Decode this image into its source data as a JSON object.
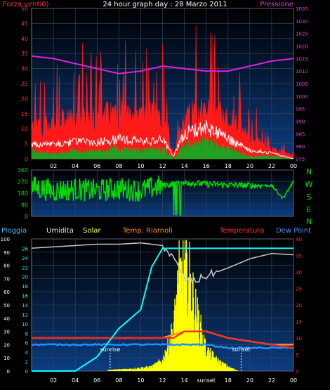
{
  "header": {
    "title": "24 hour graph day : 28 Marzo 2011",
    "left_label": "Forza venti0)",
    "right_label": "Pressione"
  },
  "panel3_labels": {
    "pioggia": "Pioggia",
    "umidita": "Umidita",
    "solar": "Solar",
    "riarnoli": "Temp. Riarnoli",
    "temperatura": "Temperatura",
    "dewpoint": "Dew Point"
  },
  "compass": [
    "N",
    "W",
    "S",
    "E",
    "N"
  ],
  "colors": {
    "wind_gust": "#ff1a1a",
    "wind_avg": "#ffffff",
    "wind_low": "#22a022",
    "pressure": "#e020e0",
    "direction": "#00e000",
    "solar": "#ffff00",
    "rain": "#00ffff",
    "humidity": "#c8c8c8",
    "temperatura": "#ff2020",
    "riarnoli": "#ff9020",
    "dewpoint": "#2090ff",
    "axis_red": "#ff3030",
    "axis_magenta": "#e040e0",
    "axis_green": "#00e000"
  },
  "chart_data": [
    {
      "type": "line",
      "name": "wind_pressure",
      "x_ticks": [
        "02",
        "04",
        "06",
        "08",
        "10",
        "12",
        "14",
        "16",
        "18",
        "20",
        "22",
        "00"
      ],
      "y_left_ticks": [
        "0",
        "5",
        "10",
        "15",
        "20",
        "25",
        "30",
        "35",
        "40",
        "45",
        "50"
      ],
      "y_right_ticks": [
        "975",
        "980",
        "985",
        "990",
        "995",
        "1000",
        "1005",
        "1010",
        "1015",
        "1020",
        "1025",
        "1030",
        "1035"
      ],
      "ylim_left": [
        0,
        50
      ],
      "ylim_right": [
        975,
        1035
      ],
      "pressure": {
        "x": [
          0,
          2,
          4,
          6,
          8,
          10,
          12,
          14,
          16,
          18,
          20,
          22,
          24
        ],
        "y": [
          1016,
          1015,
          1013,
          1011,
          1009,
          1010,
          1012,
          1011,
          1010,
          1010,
          1012,
          1014,
          1015
        ]
      },
      "wind_envelope": {
        "x": [
          0,
          2,
          4,
          6,
          8,
          10,
          12,
          13,
          14,
          16,
          18,
          20,
          22,
          24
        ],
        "gust": [
          12,
          14,
          15,
          16,
          18,
          17,
          18,
          2,
          16,
          20,
          16,
          8,
          4,
          1
        ],
        "avg": [
          5,
          5,
          6,
          6,
          7,
          6,
          7,
          1,
          9,
          11,
          7,
          3,
          2,
          0
        ],
        "low": [
          3,
          2,
          3,
          3,
          4,
          3,
          4,
          0,
          5,
          7,
          4,
          1,
          1,
          0
        ]
      }
    },
    {
      "type": "line",
      "name": "wind_direction",
      "x_ticks": [
        "02",
        "04",
        "06",
        "08",
        "10",
        "12",
        "14",
        "16",
        "18",
        "20",
        "22",
        "00"
      ],
      "y_ticks": [
        "0",
        "90",
        "180",
        "270",
        "360"
      ],
      "ylim": [
        0,
        360
      ],
      "direction": {
        "x": [
          0,
          2,
          4,
          6,
          8,
          10,
          12,
          14,
          16,
          18,
          20,
          22,
          23,
          24
        ],
        "y": [
          230,
          200,
          210,
          200,
          215,
          200,
          240,
          265,
          250,
          245,
          240,
          240,
          140,
          270
        ]
      }
    },
    {
      "type": "line",
      "name": "weather",
      "x_ticks": [
        "02",
        "04",
        "06",
        "08",
        "10",
        "12",
        "14",
        "sunset",
        "18",
        "20",
        "22",
        "00"
      ],
      "y_left_ticks": [
        "0",
        "10",
        "20",
        "30",
        "40",
        "50",
        "60",
        "70",
        "80",
        "90",
        "100"
      ],
      "y_mid_ticks": [
        "0",
        "2",
        "4",
        "6",
        "8",
        "10",
        "12",
        "14",
        "16",
        "18",
        "20",
        "22",
        "24",
        "26"
      ],
      "y_right_ticks": [
        "0",
        "5",
        "10",
        "15",
        "20",
        "25",
        "30",
        "35",
        "40"
      ],
      "annotations": [
        "sunrise",
        "sunset"
      ],
      "rain": {
        "x": [
          0,
          4,
          6,
          8,
          10,
          11,
          12,
          14,
          24
        ],
        "y": [
          0,
          0,
          3,
          9,
          13,
          22,
          26,
          26,
          26
        ]
      },
      "humidity": {
        "x": [
          0,
          2,
          4,
          6,
          8,
          10,
          12,
          13,
          14,
          15,
          16,
          18,
          20,
          22,
          24
        ],
        "y": [
          93,
          94,
          95,
          96,
          96,
          97,
          95,
          85,
          70,
          68,
          72,
          78,
          85,
          89,
          88
        ]
      },
      "temperatura": {
        "x": [
          0,
          4,
          8,
          12,
          13,
          14,
          16,
          18,
          20,
          22,
          24
        ],
        "y": [
          10,
          10,
          10,
          10,
          10,
          12,
          12,
          10,
          9,
          8,
          7
        ]
      },
      "riarnoli": {
        "x": [
          0,
          4,
          8,
          12,
          14,
          16,
          18,
          20,
          22,
          24
        ],
        "y": [
          10,
          10,
          10,
          10,
          12,
          12,
          10,
          9,
          8,
          8
        ]
      },
      "dewpoint": {
        "x": [
          0,
          4,
          8,
          12,
          14,
          16,
          18,
          20,
          22,
          24
        ],
        "y": [
          8,
          8,
          8,
          8,
          8,
          8,
          7,
          7,
          7,
          7
        ]
      },
      "solar": {
        "x": [
          7,
          9,
          11,
          12,
          13,
          13.5,
          14,
          14.5,
          15,
          16,
          17,
          18,
          19
        ],
        "y": [
          1,
          2,
          4,
          10,
          40,
          90,
          98,
          90,
          60,
          20,
          10,
          4,
          0
        ]
      }
    }
  ]
}
